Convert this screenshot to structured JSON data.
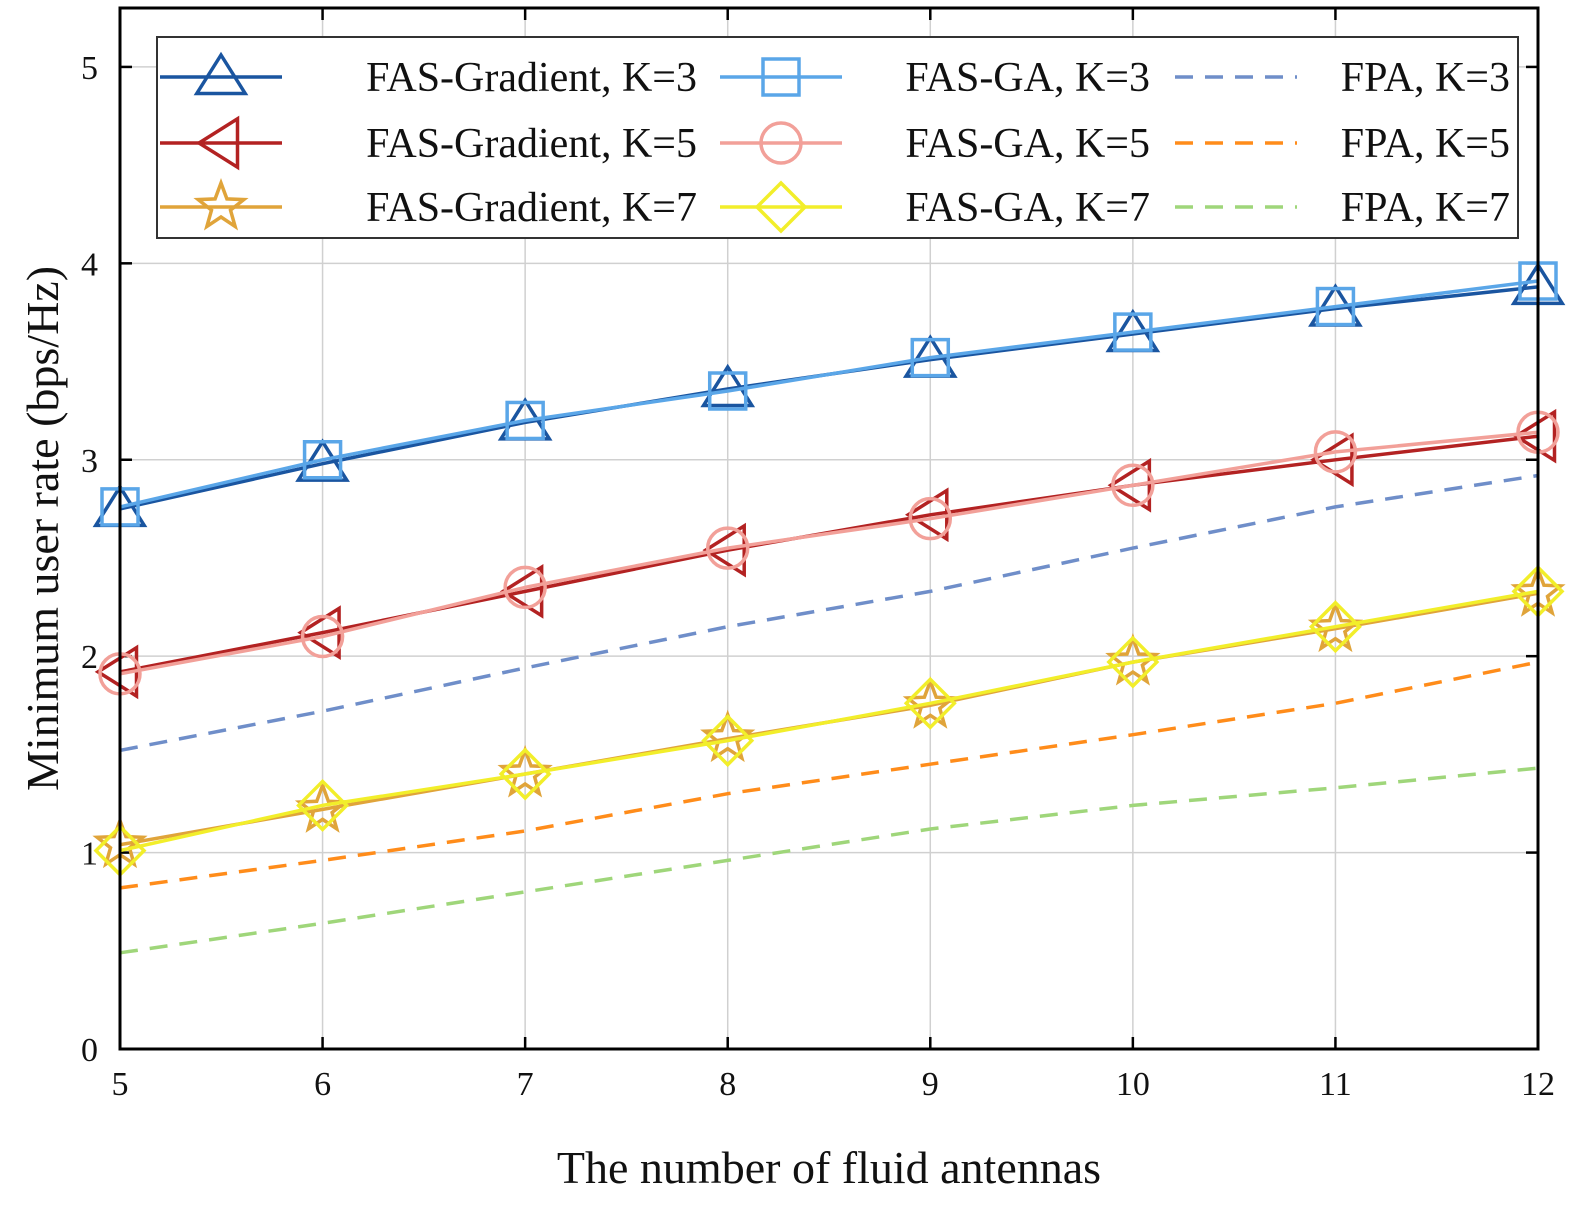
{
  "chart_data": {
    "type": "line",
    "title": "",
    "xlabel": "The number of fluid antennas",
    "ylabel": "Minimum user rate (bps/Hz)",
    "xlim": [
      5,
      12
    ],
    "ylim": [
      0,
      5.3
    ],
    "xticks": [
      5,
      6,
      7,
      8,
      9,
      10,
      11,
      12
    ],
    "yticks": [
      0,
      1,
      2,
      3,
      4,
      5
    ],
    "grid": true,
    "legend_position": "top, 3 columns",
    "x": [
      5,
      6,
      7,
      8,
      9,
      10,
      11,
      12
    ],
    "series": [
      {
        "name": "FAS-Gradient, K=3",
        "values": [
          2.75,
          2.98,
          3.19,
          3.36,
          3.51,
          3.64,
          3.77,
          3.88
        ],
        "color": "#1a55a0",
        "dash": "solid",
        "marker": "triangle-up"
      },
      {
        "name": "FAS-GA, K=3",
        "values": [
          2.76,
          3.0,
          3.2,
          3.35,
          3.52,
          3.65,
          3.78,
          3.91
        ],
        "color": "#5aa6e8",
        "dash": "solid",
        "marker": "square"
      },
      {
        "name": "FPA, K=3",
        "values": [
          1.52,
          1.72,
          1.94,
          2.15,
          2.33,
          2.55,
          2.76,
          2.92
        ],
        "color": "#6f8ec9",
        "dash": "dashed",
        "marker": "none"
      },
      {
        "name": "FAS-Gradient, K=5",
        "values": [
          1.92,
          2.12,
          2.33,
          2.54,
          2.72,
          2.87,
          3.0,
          3.12
        ],
        "color": "#b32222",
        "dash": "solid",
        "marker": "triangle-left"
      },
      {
        "name": "FAS-GA, K=5",
        "values": [
          1.91,
          2.1,
          2.35,
          2.55,
          2.7,
          2.87,
          3.04,
          3.14
        ],
        "color": "#f2a099",
        "dash": "solid",
        "marker": "circle"
      },
      {
        "name": "FPA, K=5",
        "values": [
          0.82,
          0.96,
          1.11,
          1.3,
          1.45,
          1.6,
          1.76,
          1.97
        ],
        "color": "#ff8c1a",
        "dash": "dashed",
        "marker": "none"
      },
      {
        "name": "FAS-Gradient, K=7",
        "values": [
          1.04,
          1.22,
          1.4,
          1.58,
          1.75,
          1.97,
          2.14,
          2.32
        ],
        "color": "#e0a43a",
        "dash": "solid",
        "marker": "star"
      },
      {
        "name": "FAS-GA, K=7",
        "values": [
          1.01,
          1.24,
          1.4,
          1.57,
          1.76,
          1.97,
          2.15,
          2.33
        ],
        "color": "#f2ee2a",
        "dash": "solid",
        "marker": "diamond"
      },
      {
        "name": "FPA, K=7",
        "values": [
          0.49,
          0.64,
          0.8,
          0.96,
          1.12,
          1.24,
          1.33,
          1.43
        ],
        "color": "#9fd67a",
        "dash": "dashed",
        "marker": "none"
      }
    ]
  }
}
